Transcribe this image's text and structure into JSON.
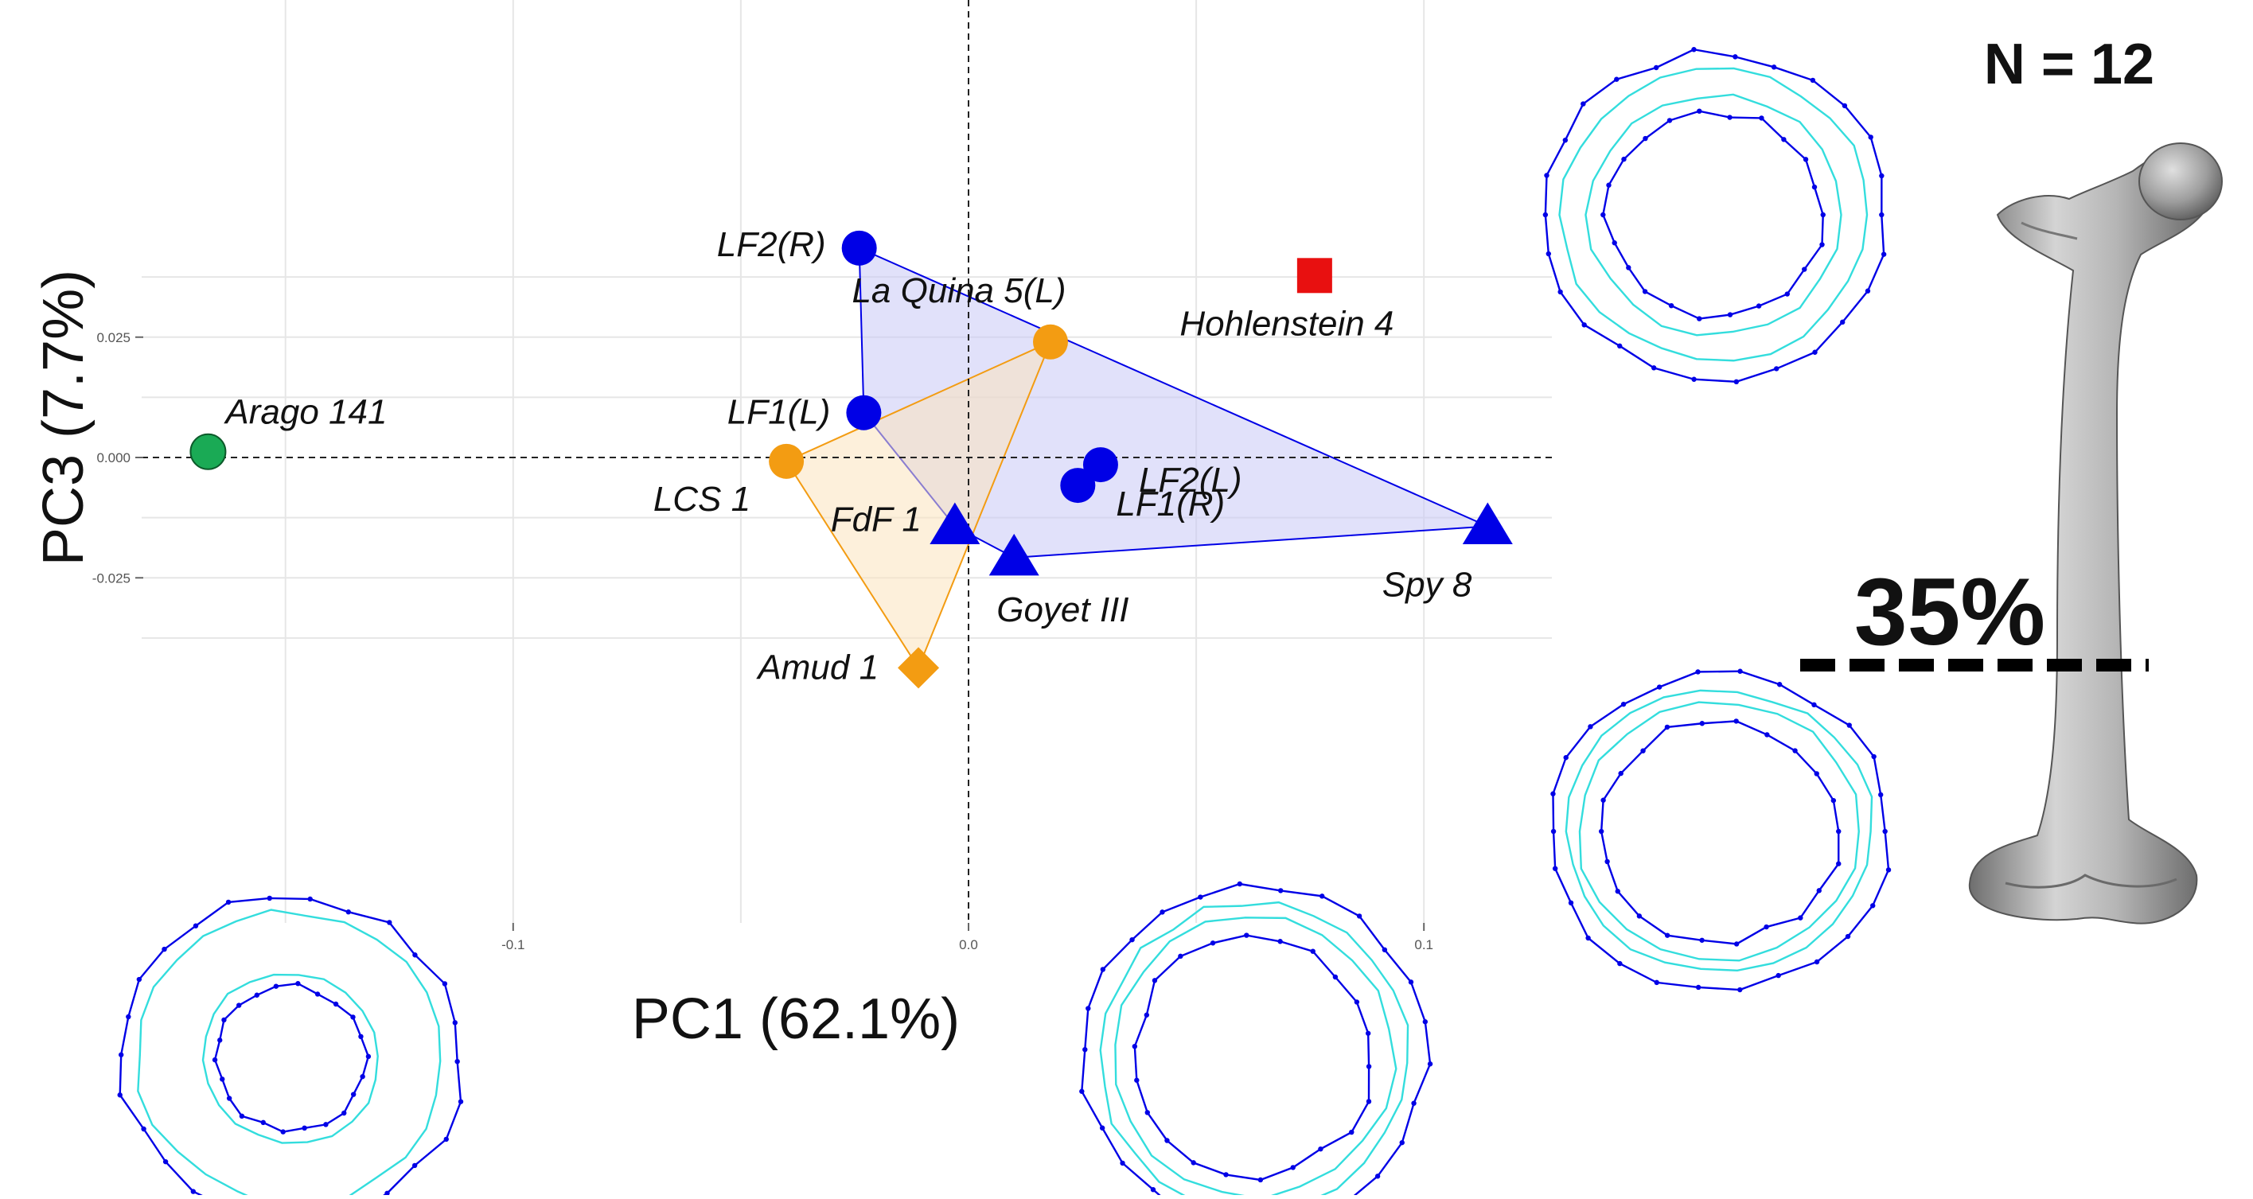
{
  "chart_data": {
    "type": "scatter",
    "xlabel": "PC1 (62.1%)",
    "ylabel": "PC3 (7.7%)",
    "xlim": [
      -0.2,
      0.13
    ],
    "ylim": [
      -0.04,
      0.045
    ],
    "x_ticks": [
      -0.1,
      0.0,
      0.1
    ],
    "x_tick_labels": [
      "-0.1",
      "0.0",
      "0.1"
    ],
    "y_ticks": [
      0.025,
      0.0,
      -0.025
    ],
    "y_tick_labels": [
      "0.025",
      "0.000",
      "-0.025"
    ],
    "grid": true,
    "reference_lines": {
      "x": 0,
      "y": 0
    },
    "groups": [
      {
        "color": "#0000e6",
        "fill": "#c8c8f5",
        "hull": [
          "LF2(R)",
          "Spy 8",
          "Goyet III",
          "FdF 1",
          "LF1(L)"
        ]
      },
      {
        "color": "#f39c12",
        "fill": "#fbe3bd",
        "hull": [
          "La Quina 5(L)",
          "LCS 1",
          "Amud 1"
        ]
      }
    ],
    "points": [
      {
        "label": "LF2(R)",
        "x": -0.024,
        "y": 0.0435,
        "shape": "circle",
        "color": "#0000e6"
      },
      {
        "label": "LF1(L)",
        "x": -0.023,
        "y": 0.0093,
        "shape": "circle",
        "color": "#0000e6"
      },
      {
        "label": "LF2(L)",
        "x": 0.029,
        "y": -0.0015,
        "shape": "circle",
        "color": "#0000e6"
      },
      {
        "label": "LF1(R)",
        "x": 0.024,
        "y": -0.0058,
        "shape": "circle",
        "color": "#0000e6"
      },
      {
        "label": "FdF 1",
        "x": -0.003,
        "y": -0.0143,
        "shape": "triangle",
        "color": "#0000e6"
      },
      {
        "label": "Goyet III",
        "x": 0.01,
        "y": -0.0208,
        "shape": "triangle",
        "color": "#0000e6"
      },
      {
        "label": "Spy 8",
        "x": 0.114,
        "y": -0.0143,
        "shape": "triangle",
        "color": "#0000e6"
      },
      {
        "label": "La Quina 5(L)",
        "x": 0.018,
        "y": 0.024,
        "shape": "circle",
        "color": "#f39c12"
      },
      {
        "label": "LCS 1",
        "x": -0.04,
        "y": -0.0008,
        "shape": "circle",
        "color": "#f39c12"
      },
      {
        "label": "Amud 1",
        "x": -0.011,
        "y": -0.0437,
        "shape": "diamond",
        "color": "#f39c12"
      },
      {
        "label": "Arago 141",
        "x": -0.167,
        "y": 0.0012,
        "shape": "circle",
        "color": "#1aaa55"
      },
      {
        "label": "Hohlenstein 4",
        "x": 0.076,
        "y": 0.0378,
        "shape": "square",
        "color": "#e81010"
      }
    ]
  },
  "annotations": {
    "sample_size": "N = 12",
    "cross_section_level": "35%"
  },
  "colors": {
    "cross_section_outer": "#0000e6",
    "cross_section_inner": "#33dddd",
    "bone": "#9a9a9a"
  }
}
